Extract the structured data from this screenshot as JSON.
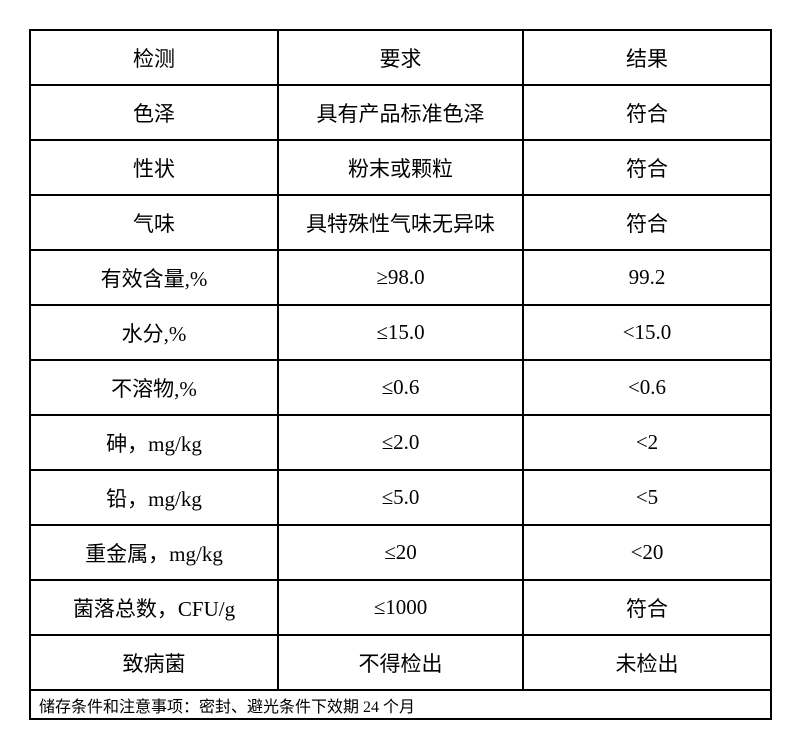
{
  "colors": {
    "background": "#ffffff",
    "border": "#000000",
    "text": "#000000"
  },
  "table": {
    "columns": {
      "test": "检测",
      "requirement": "要求",
      "result": "结果"
    },
    "rows": [
      {
        "test": "色泽",
        "requirement": "具有产品标准色泽",
        "result": "符合"
      },
      {
        "test": "性状",
        "requirement": "粉末或颗粒",
        "result": "符合"
      },
      {
        "test": "气味",
        "requirement": "具特殊性气味无异味",
        "result": "符合"
      },
      {
        "test": "有效含量,%",
        "requirement": "≥98.0",
        "result": "99.2"
      },
      {
        "test": "水分,%",
        "requirement": "≤15.0",
        "result": "<15.0"
      },
      {
        "test": "不溶物,%",
        "requirement": "≤0.6",
        "result": "<0.6"
      },
      {
        "test": "砷，mg/kg",
        "requirement": "≤2.0",
        "result": "<2"
      },
      {
        "test": "铅，mg/kg",
        "requirement": "≤5.0",
        "result": "<5"
      },
      {
        "test": "重金属，mg/kg",
        "requirement": "≤20",
        "result": "<20"
      },
      {
        "test": "菌落总数，CFU/g",
        "requirement": "≤1000",
        "result": "符合"
      },
      {
        "test": "致病菌",
        "requirement": "不得检出",
        "result": "未检出"
      }
    ],
    "footer_note": "储存条件和注意事项：密封、避光条件下效期 24 个月"
  }
}
